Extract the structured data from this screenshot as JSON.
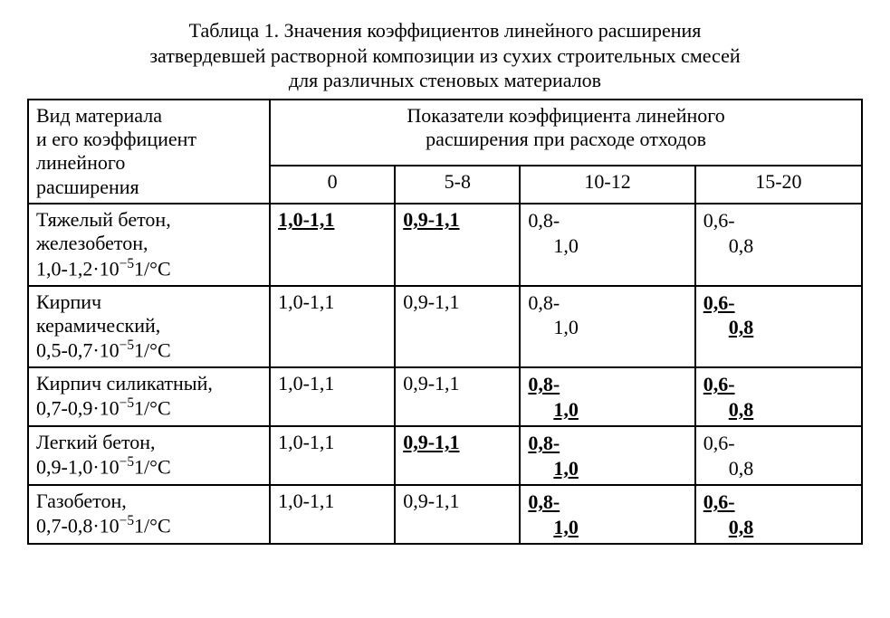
{
  "title_lines": [
    "Таблица 1. Значения коэффициентов линейного расширения",
    "затвердевшей   растворной композиции из сухих строительных смесей",
    "для  различных  стеновых материалов"
  ],
  "header": {
    "row_label_l1": " Вид материала",
    "row_label_l2": " и его коэффициент",
    "row_label_l3": " линейного",
    "row_label_l4": " расширения",
    "group_l1": "Показатели коэффициента линейного",
    "group_l2": "расширения при  расходе отходов",
    "cols": [
      "0",
      "5-8",
      "10-12",
      "15-20"
    ]
  },
  "rows": [
    {
      "label_l1": " Тяжелый бетон,",
      "label_l2": " железобетон,",
      "label_coef": "1,0-1,2·10",
      "label_exp": "−5",
      "label_unit": "1/°C",
      "c0": {
        "a": "1,0-1,1",
        "b": "",
        "bold": true,
        "wrap": false
      },
      "c1": {
        "a": "0,9-1,1",
        "b": "",
        "bold": true,
        "wrap": false
      },
      "c2": {
        "a": "0,8-",
        "b": "1,0",
        "bold": false,
        "wrap": true
      },
      "c3": {
        "a": "0,6-",
        "b": "0,8",
        "bold": false,
        "wrap": true
      }
    },
    {
      "label_l1": " Кирпич",
      "label_l2": " керамический,",
      "label_coef": "0,5-0,7·10",
      "label_exp": "−5",
      "label_unit": "1/°C",
      "c0": {
        "a": "1,0-1,1",
        "b": "",
        "bold": false,
        "wrap": false
      },
      "c1": {
        "a": "0,9-1,1",
        "b": "",
        "bold": false,
        "wrap": false
      },
      "c2": {
        "a": "0,8-",
        "b": "1,0",
        "bold": false,
        "wrap": true
      },
      "c3": {
        "a": "0,6-",
        "b": "0,8",
        "bold": true,
        "wrap": true
      }
    },
    {
      "label_l1": " Кирпич силикатный,",
      "label_l2": "",
      "label_coef": "0,7-0,9·10",
      "label_exp": "−5",
      "label_unit": "1/°C",
      "c0": {
        "a": "1,0-1,1",
        "b": "",
        "bold": false,
        "wrap": false
      },
      "c1": {
        "a": "0,9-1,1",
        "b": "",
        "bold": false,
        "wrap": false
      },
      "c2": {
        "a": "0,8-",
        "b": "1,0",
        "bold": true,
        "wrap": true
      },
      "c3": {
        "a": "0,6-",
        "b": "0,8",
        "bold": true,
        "wrap": true
      }
    },
    {
      "label_l1": " Легкий бетон,",
      "label_l2": "",
      "label_coef": " 0,9-1,0·10",
      "label_exp": "−5",
      "label_unit": "1/°C",
      "c0": {
        "a": "1,0-1,1",
        "b": "",
        "bold": false,
        "wrap": false
      },
      "c1": {
        "a": "0,9-1,1",
        "b": "",
        "bold": true,
        "wrap": false
      },
      "c2": {
        "a": "0,8-",
        "b": "1,0",
        "bold": true,
        "wrap": true
      },
      "c3": {
        "a": "0,6-",
        "b": "0,8",
        "bold": false,
        "wrap": true
      }
    },
    {
      "label_l1": " Газобетон,",
      "label_l2": "",
      "label_coef": "0,7-0,8·10",
      "label_exp": "−5",
      "label_unit": "1/°C",
      "c0": {
        "a": "1,0-1,1",
        "b": "",
        "bold": false,
        "wrap": false
      },
      "c1": {
        "a": "0,9-1,1",
        "b": "",
        "bold": false,
        "wrap": false
      },
      "c2": {
        "a": "0,8-",
        "b": "1,0",
        "bold": true,
        "wrap": true
      },
      "c3": {
        "a": "0,6-",
        "b": "0,8",
        "bold": true,
        "wrap": true
      }
    }
  ]
}
